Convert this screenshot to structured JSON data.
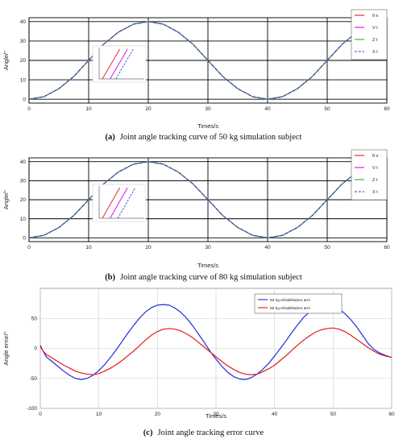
{
  "chart_data": [
    {
      "type": "line",
      "caption_tag": "(a)",
      "caption": "Joint angle tracking curve of 50 kg simulation subject",
      "xlabel": "Times/s",
      "ylabel": "Angle/°",
      "xlim": [
        0,
        60
      ],
      "ylim": [
        -2,
        42
      ],
      "xticks": [
        0,
        10,
        20,
        30,
        40,
        50,
        60
      ],
      "yticks": [
        0,
        10,
        20,
        30,
        40
      ],
      "grid": true,
      "legend_position": "top-right",
      "series": [
        {
          "name": "θ x",
          "color": "#e41a1c",
          "dash": "solid",
          "x": [
            0,
            2.5,
            5,
            7.5,
            10,
            12.5,
            15,
            17.5,
            20,
            22.5,
            25,
            27.5,
            30,
            32.5,
            35,
            37.5,
            40,
            42.5,
            45,
            47.5,
            50,
            52.5,
            55,
            57.5,
            60
          ],
          "y": [
            0,
            1.3,
            5.4,
            11.7,
            20,
            28.3,
            34.6,
            38.7,
            40,
            38.7,
            34.6,
            28.3,
            20,
            11.7,
            5.4,
            1.3,
            0,
            1.3,
            5.4,
            11.7,
            20,
            28.3,
            34.6,
            38.7,
            40
          ]
        },
        {
          "name": "V t",
          "color": "#e000e0",
          "dash": "solid",
          "x": [
            0,
            2.5,
            5,
            7.5,
            10,
            12.5,
            15,
            17.5,
            20,
            22.5,
            25,
            27.5,
            30,
            32.5,
            35,
            37.5,
            40,
            42.5,
            45,
            47.5,
            50,
            52.5,
            55,
            57.5,
            60
          ],
          "y": [
            0,
            1.3,
            5.4,
            11.7,
            20,
            28.3,
            34.6,
            38.7,
            40,
            38.7,
            34.6,
            28.3,
            20,
            11.7,
            5.4,
            1.3,
            0,
            1.3,
            5.4,
            11.7,
            20,
            28.3,
            34.6,
            38.7,
            40
          ]
        },
        {
          "name": "Z t",
          "color": "#33aa33",
          "dash": "solid",
          "x": [
            0,
            2.5,
            5,
            7.5,
            10,
            12.5,
            15,
            17.5,
            20,
            22.5,
            25,
            27.5,
            30,
            32.5,
            35,
            37.5,
            40,
            42.5,
            45,
            47.5,
            50,
            52.5,
            55,
            57.5,
            60
          ],
          "y": [
            0,
            1.3,
            5.4,
            11.7,
            20,
            28.3,
            34.6,
            38.7,
            40,
            38.7,
            34.6,
            28.3,
            20,
            11.7,
            5.4,
            1.3,
            0,
            1.3,
            5.4,
            11.7,
            20,
            28.3,
            34.6,
            38.7,
            40
          ]
        },
        {
          "name": "X t",
          "color": "#2b3fd6",
          "dash": "dashed",
          "x": [
            0,
            2.5,
            5,
            7.5,
            10,
            12.5,
            15,
            17.5,
            20,
            22.5,
            25,
            27.5,
            30,
            32.5,
            35,
            37.5,
            40,
            42.5,
            45,
            47.5,
            50,
            52.5,
            55,
            57.5,
            60
          ],
          "y": [
            0,
            1.3,
            5.4,
            11.7,
            20,
            28.3,
            34.6,
            38.7,
            40,
            38.7,
            34.6,
            28.3,
            20,
            11.7,
            5.4,
            1.3,
            0,
            1.3,
            5.4,
            11.7,
            20,
            28.3,
            34.6,
            38.7,
            40
          ]
        }
      ],
      "inset": {
        "location": "left-middle",
        "series": [
          {
            "name": "θ x",
            "color": "#e41a1c",
            "x": [
              0.0,
              0.45
            ],
            "y": [
              0,
              1
            ]
          },
          {
            "name": "V t",
            "color": "#e000e0",
            "x": [
              0.2,
              0.65
            ],
            "y": [
              0,
              1
            ]
          },
          {
            "name": "X t",
            "color": "#2b3fd6",
            "x": [
              0.35,
              0.8
            ],
            "y": [
              0,
              1
            ]
          }
        ]
      }
    },
    {
      "type": "line",
      "caption_tag": "(b)",
      "caption": "Joint angle tracking curve of 80 kg simulation subject",
      "xlabel": "Times/s",
      "ylabel": "Angle/°",
      "xlim": [
        0,
        60
      ],
      "ylim": [
        -2,
        42
      ],
      "xticks": [
        0,
        10,
        20,
        30,
        40,
        50,
        60
      ],
      "yticks": [
        0,
        10,
        20,
        30,
        40
      ],
      "grid": true,
      "legend_position": "top-right",
      "series": [
        {
          "name": "θ x",
          "color": "#e41a1c",
          "dash": "solid",
          "x": [
            0,
            2.5,
            5,
            7.5,
            10,
            12.5,
            15,
            17.5,
            20,
            22.5,
            25,
            27.5,
            30,
            32.5,
            35,
            37.5,
            40,
            42.5,
            45,
            47.5,
            50,
            52.5,
            55,
            57.5,
            60
          ],
          "y": [
            0,
            1.3,
            5.4,
            11.7,
            20,
            28.3,
            34.6,
            38.7,
            40,
            38.7,
            34.6,
            28.3,
            20,
            11.7,
            5.4,
            1.3,
            0,
            1.3,
            5.4,
            11.7,
            20,
            28.3,
            34.6,
            38.7,
            40
          ]
        },
        {
          "name": "V t",
          "color": "#e000e0",
          "dash": "solid",
          "x": [
            0,
            2.5,
            5,
            7.5,
            10,
            12.5,
            15,
            17.5,
            20,
            22.5,
            25,
            27.5,
            30,
            32.5,
            35,
            37.5,
            40,
            42.5,
            45,
            47.5,
            50,
            52.5,
            55,
            57.5,
            60
          ],
          "y": [
            0,
            1.3,
            5.4,
            11.7,
            20,
            28.3,
            34.6,
            38.7,
            40,
            38.7,
            34.6,
            28.3,
            20,
            11.7,
            5.4,
            1.3,
            0,
            1.3,
            5.4,
            11.7,
            20,
            28.3,
            34.6,
            38.7,
            40
          ]
        },
        {
          "name": "Z t",
          "color": "#33aa33",
          "dash": "solid",
          "x": [
            0,
            2.5,
            5,
            7.5,
            10,
            12.5,
            15,
            17.5,
            20,
            22.5,
            25,
            27.5,
            30,
            32.5,
            35,
            37.5,
            40,
            42.5,
            45,
            47.5,
            50,
            52.5,
            55,
            57.5,
            60
          ],
          "y": [
            0,
            1.3,
            5.4,
            11.7,
            20,
            28.3,
            34.6,
            38.7,
            40,
            38.7,
            34.6,
            28.3,
            20,
            11.7,
            5.4,
            1.3,
            0,
            1.3,
            5.4,
            11.7,
            20,
            28.3,
            34.6,
            38.7,
            40
          ]
        },
        {
          "name": "X t",
          "color": "#2b3fd6",
          "dash": "dashed",
          "x": [
            0,
            2.5,
            5,
            7.5,
            10,
            12.5,
            15,
            17.5,
            20,
            22.5,
            25,
            27.5,
            30,
            32.5,
            35,
            37.5,
            40,
            42.5,
            45,
            47.5,
            50,
            52.5,
            55,
            57.5,
            60
          ],
          "y": [
            0,
            1.3,
            5.4,
            11.7,
            20,
            28.3,
            34.6,
            38.7,
            40,
            38.7,
            34.6,
            28.3,
            20,
            11.7,
            5.4,
            1.3,
            0,
            1.3,
            5.4,
            11.7,
            20,
            28.3,
            34.6,
            38.7,
            40
          ]
        }
      ],
      "inset": {
        "location": "left-middle",
        "series": [
          {
            "name": "θ x",
            "color": "#e41a1c",
            "x": [
              0.0,
              0.45
            ],
            "y": [
              0,
              1
            ]
          },
          {
            "name": "V t",
            "color": "#e000e0",
            "x": [
              0.2,
              0.65
            ],
            "y": [
              0,
              1
            ]
          },
          {
            "name": "X t",
            "color": "#2b3fd6",
            "x": [
              0.4,
              0.85
            ],
            "y": [
              0,
              1
            ]
          }
        ]
      }
    },
    {
      "type": "line",
      "caption_tag": "(c)",
      "caption": "Joint angle tracking error curve",
      "xlabel": "Times/s",
      "ylabel": "Angle error/°",
      "xlim": [
        0,
        60
      ],
      "ylim": [
        -100,
        100
      ],
      "xticks": [
        0,
        10,
        20,
        30,
        40,
        50,
        60
      ],
      "yticks": [
        -100,
        -50,
        0,
        50
      ],
      "grid": true,
      "legend_position": "top-right",
      "series": [
        {
          "name": "50 kg rehabilitation arm",
          "color": "#1f2fd8",
          "dash": "solid",
          "x": [
            0,
            0.5,
            1,
            2,
            3,
            4,
            5,
            6,
            7,
            8,
            9,
            10,
            11,
            12,
            13,
            14,
            15,
            16,
            17,
            18,
            19,
            20,
            21,
            22,
            23,
            24,
            25,
            26,
            27,
            28,
            29,
            30,
            31,
            32,
            33,
            34,
            35,
            36,
            37,
            38,
            39,
            40,
            41,
            42,
            43,
            44,
            45,
            46,
            47,
            48,
            49,
            50,
            51,
            52,
            53,
            54,
            55,
            56,
            57,
            58,
            59,
            60
          ],
          "y": [
            5,
            -5,
            -14,
            -22,
            -30,
            -38,
            -45,
            -50,
            -52,
            -50,
            -45,
            -37,
            -27,
            -15,
            -2,
            12,
            26,
            39,
            51,
            61,
            68,
            72,
            73,
            72,
            67,
            60,
            50,
            38,
            24,
            10,
            -5,
            -18,
            -30,
            -40,
            -47,
            -51,
            -52,
            -49,
            -43,
            -35,
            -25,
            -13,
            0,
            13,
            27,
            40,
            52,
            61,
            68,
            72,
            73,
            71,
            66,
            58,
            48,
            36,
            22,
            8,
            -2,
            -8,
            -12,
            -15
          ]
        },
        {
          "name": "80 kg rehabilitation arm",
          "color": "#e41a1c",
          "dash": "solid",
          "x": [
            0,
            0.5,
            1,
            2,
            3,
            4,
            5,
            6,
            7,
            8,
            9,
            10,
            11,
            12,
            13,
            14,
            15,
            16,
            17,
            18,
            19,
            20,
            21,
            22,
            23,
            24,
            25,
            26,
            27,
            28,
            29,
            30,
            31,
            32,
            33,
            34,
            35,
            36,
            37,
            38,
            39,
            40,
            41,
            42,
            43,
            44,
            45,
            46,
            47,
            48,
            49,
            50,
            51,
            52,
            53,
            54,
            55,
            56,
            57,
            58,
            59,
            60
          ],
          "y": [
            3,
            -5,
            -10,
            -16,
            -22,
            -28,
            -33,
            -38,
            -41,
            -43,
            -44,
            -42,
            -38,
            -33,
            -27,
            -20,
            -12,
            -4,
            5,
            14,
            22,
            28,
            32,
            33,
            32,
            29,
            24,
            18,
            10,
            2,
            -6,
            -14,
            -22,
            -29,
            -35,
            -40,
            -43,
            -44,
            -43,
            -39,
            -34,
            -28,
            -20,
            -12,
            -3,
            6,
            14,
            21,
            27,
            31,
            33,
            34,
            32,
            28,
            22,
            15,
            8,
            1,
            -5,
            -10,
            -13,
            -15
          ]
        }
      ]
    }
  ]
}
